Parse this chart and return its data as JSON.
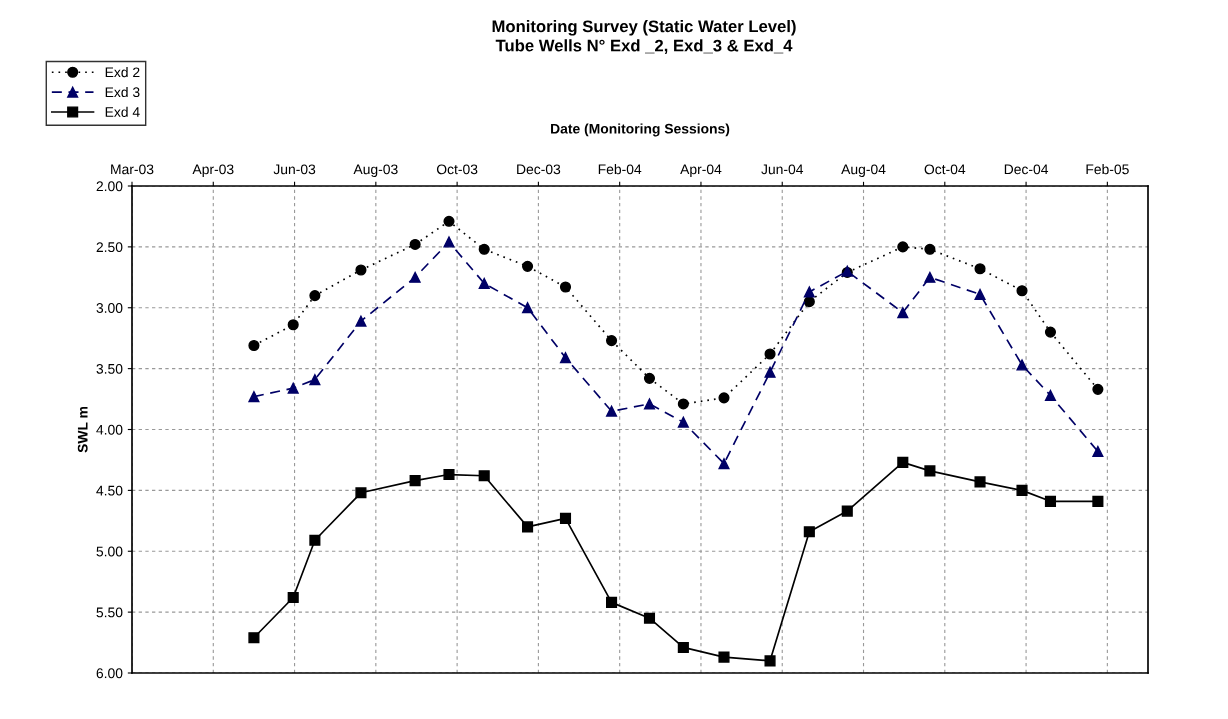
{
  "chart_data": {
    "type": "line",
    "title": "Monitoring Survey (Static Water Level)\nTube Wells N° Exd _2, Exd_3 & Exd_4",
    "xlabel": "Date (Monitoring Sessions)",
    "ylabel": "SWL m",
    "x": [
      "2003-05-30",
      "2003-06-28",
      "2003-07-14",
      "2003-08-17",
      "2003-09-26",
      "2003-10-21",
      "2003-11-16",
      "2003-12-18",
      "2004-01-15",
      "2004-02-18",
      "2004-03-17",
      "2004-04-11",
      "2004-05-11",
      "2004-06-14",
      "2004-07-13",
      "2004-08-10",
      "2004-09-20",
      "2004-10-10",
      "2004-11-16",
      "2004-12-17",
      "2005-01-07",
      "2005-02-11"
    ],
    "series": [
      {
        "name": "Exd 2",
        "color": "#000000",
        "marker": "circle",
        "line_style": "dotted",
        "values": [
          3.31,
          3.14,
          2.9,
          2.69,
          2.48,
          2.29,
          2.52,
          2.66,
          2.83,
          3.27,
          3.58,
          3.79,
          3.74,
          3.38,
          2.95,
          2.71,
          2.5,
          2.52,
          2.68,
          2.86,
          3.2,
          3.67
        ]
      },
      {
        "name": "Exd 3",
        "color": "#000066",
        "marker": "triangle",
        "line_style": "dashed",
        "values": [
          3.73,
          3.66,
          3.59,
          3.11,
          2.75,
          2.46,
          2.8,
          3.0,
          3.41,
          3.85,
          3.79,
          3.94,
          4.28,
          3.53,
          2.87,
          2.7,
          3.04,
          2.75,
          2.89,
          3.47,
          3.72,
          4.18
        ]
      },
      {
        "name": "Exd 4",
        "color": "#000000",
        "marker": "square",
        "line_style": "solid",
        "values": [
          5.71,
          5.38,
          4.91,
          4.52,
          4.42,
          4.37,
          4.38,
          4.8,
          4.73,
          5.42,
          5.55,
          5.79,
          5.87,
          5.9,
          4.84,
          4.67,
          4.27,
          4.34,
          4.43,
          4.5,
          4.59,
          4.59
        ]
      }
    ],
    "xlim": [
      "2003-03-01",
      "2005-03-20"
    ],
    "xticks": [
      {
        "value": "2003-03-01",
        "label": "Mar-03"
      },
      {
        "value": "2003-04-30",
        "label": "Apr-03"
      },
      {
        "value": "2003-06-29",
        "label": "Jun-03"
      },
      {
        "value": "2003-08-28",
        "label": "Aug-03"
      },
      {
        "value": "2003-10-27",
        "label": "Oct-03"
      },
      {
        "value": "2003-12-26",
        "label": "Dec-03"
      },
      {
        "value": "2004-02-24",
        "label": "Feb-04"
      },
      {
        "value": "2004-04-24",
        "label": "Apr-04"
      },
      {
        "value": "2004-06-23",
        "label": "Jun-04"
      },
      {
        "value": "2004-08-22",
        "label": "Aug-04"
      },
      {
        "value": "2004-10-21",
        "label": "Oct-04"
      },
      {
        "value": "2004-12-20",
        "label": "Dec-04"
      },
      {
        "value": "2005-02-18",
        "label": "Feb-05"
      }
    ],
    "ylim": [
      6,
      2
    ],
    "yticks": [
      {
        "value": 2,
        "label": "2.00"
      },
      {
        "value": 2.5,
        "label": "2.50"
      },
      {
        "value": 3,
        "label": "3.00"
      },
      {
        "value": 3.5,
        "label": "3.50"
      },
      {
        "value": 4,
        "label": "4.00"
      },
      {
        "value": 4.5,
        "label": "4.50"
      },
      {
        "value": 5,
        "label": "5.00"
      },
      {
        "value": 5.5,
        "label": "5.50"
      },
      {
        "value": 6,
        "label": "6.00"
      }
    ],
    "grid": true,
    "legend": "top left"
  }
}
